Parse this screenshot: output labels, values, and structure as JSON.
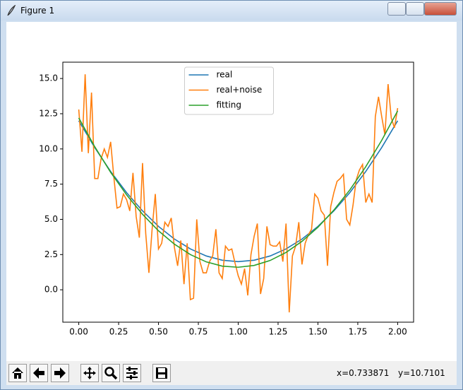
{
  "window": {
    "title": "Figure 1"
  },
  "status": {
    "x": "x=0.733871",
    "y": "y=10.7101"
  },
  "chart_data": {
    "type": "line",
    "xlim": [
      -0.1,
      2.1
    ],
    "ylim": [
      -2.3,
      16.16
    ],
    "xticks": [
      {
        "value": 0,
        "label": "0.00"
      },
      {
        "value": 0.25,
        "label": "0.25"
      },
      {
        "value": 0.5,
        "label": "0.50"
      },
      {
        "value": 0.75,
        "label": "0.75"
      },
      {
        "value": 1,
        "label": "1.00"
      },
      {
        "value": 1.25,
        "label": "1.25"
      },
      {
        "value": 1.5,
        "label": "1.50"
      },
      {
        "value": 1.75,
        "label": "1.75"
      },
      {
        "value": 2,
        "label": "2.00"
      }
    ],
    "yticks": [
      {
        "value": 0,
        "label": "0.0"
      },
      {
        "value": 2.5,
        "label": "2.5"
      },
      {
        "value": 5,
        "label": "5.0"
      },
      {
        "value": 7.5,
        "label": "7.5"
      },
      {
        "value": 10,
        "label": "10.0"
      },
      {
        "value": 12.5,
        "label": "12.5"
      },
      {
        "value": 15,
        "label": "15.0"
      }
    ],
    "legend": "upper center",
    "series": [
      {
        "name": "real",
        "color": "#1f77b4",
        "x": [
          0,
          0.1,
          0.2,
          0.3,
          0.4,
          0.5,
          0.6,
          0.7,
          0.8,
          0.9,
          1,
          1.1,
          1.2,
          1.3,
          1.4,
          1.5,
          1.6,
          1.7,
          1.8,
          1.9,
          2
        ],
        "values": [
          12,
          10.1,
          8.4,
          6.9,
          5.6,
          4.5,
          3.6,
          2.9,
          2.4,
          2.1,
          2,
          2.1,
          2.4,
          2.9,
          3.6,
          4.5,
          5.6,
          6.9,
          8.4,
          10.1,
          12
        ]
      },
      {
        "name": "real+noise",
        "color": "#ff7f0e",
        "x": [
          0,
          0.02,
          0.04,
          0.06,
          0.08,
          0.1,
          0.12,
          0.14,
          0.16,
          0.18,
          0.2,
          0.22,
          0.24,
          0.26,
          0.28,
          0.3,
          0.32,
          0.34,
          0.36,
          0.38,
          0.4,
          0.42,
          0.44,
          0.46,
          0.48,
          0.5,
          0.52,
          0.54,
          0.56,
          0.58,
          0.6,
          0.62,
          0.64,
          0.66,
          0.68,
          0.7,
          0.72,
          0.74,
          0.76,
          0.78,
          0.8,
          0.82,
          0.84,
          0.86,
          0.88,
          0.9,
          0.92,
          0.94,
          0.96,
          0.98,
          1,
          1.02,
          1.04,
          1.06,
          1.08,
          1.1,
          1.12,
          1.14,
          1.16,
          1.18,
          1.2,
          1.22,
          1.24,
          1.26,
          1.28,
          1.3,
          1.32,
          1.34,
          1.36,
          1.38,
          1.4,
          1.42,
          1.44,
          1.46,
          1.48,
          1.5,
          1.52,
          1.54,
          1.56,
          1.58,
          1.6,
          1.62,
          1.64,
          1.66,
          1.68,
          1.7,
          1.72,
          1.74,
          1.76,
          1.78,
          1.8,
          1.82,
          1.84,
          1.86,
          1.88,
          1.9,
          1.92,
          1.94,
          1.96,
          1.98,
          2
        ],
        "values": [
          12.8,
          9.8,
          15.3,
          9.7,
          14.0,
          7.9,
          7.9,
          9.3,
          10.0,
          9.4,
          10.5,
          8.0,
          5.8,
          5.9,
          6.8,
          6.4,
          5.6,
          8.3,
          5.2,
          3.7,
          9.0,
          4.0,
          1.2,
          4.3,
          6.8,
          2.9,
          3.3,
          4.8,
          4.5,
          5.1,
          3.0,
          1.7,
          3.5,
          0.4,
          3.3,
          -0.7,
          -0.6,
          5.0,
          2.0,
          1.2,
          1.2,
          2.0,
          2.4,
          4.3,
          1.2,
          0.8,
          3.1,
          2.8,
          2.9,
          1.9,
          1.0,
          0.4,
          1.5,
          -0.4,
          2.5,
          3.8,
          4.7,
          -0.3,
          0.8,
          4.5,
          3.2,
          3.1,
          3.1,
          3.4,
          2.0,
          4.7,
          -1.6,
          2.4,
          3.1,
          4.8,
          1.8,
          3.3,
          3.9,
          4.3,
          6.8,
          6.5,
          5.6,
          5.3,
          1.7,
          5.9,
          6.9,
          7.7,
          7.9,
          8.2,
          5.0,
          4.6,
          6.0,
          7.8,
          8.5,
          8.9,
          6.2,
          6.8,
          6.2,
          12.3,
          13.7,
          12.3,
          11.0,
          14.6,
          12.2,
          11.5,
          12.9
        ]
      },
      {
        "name": "fitting",
        "color": "#2ca02c",
        "x": [
          0,
          0.1,
          0.2,
          0.3,
          0.4,
          0.5,
          0.6,
          0.7,
          0.8,
          0.9,
          1,
          1.1,
          1.2,
          1.3,
          1.4,
          1.5,
          1.6,
          1.7,
          1.8,
          1.9,
          2
        ],
        "values": [
          12.2,
          10.16,
          8.34,
          6.74,
          5.36,
          4.19,
          3.24,
          2.5,
          1.98,
          1.68,
          1.6,
          1.73,
          2.08,
          2.65,
          3.44,
          4.44,
          5.66,
          7.09,
          8.74,
          10.61,
          12.7
        ]
      }
    ]
  }
}
